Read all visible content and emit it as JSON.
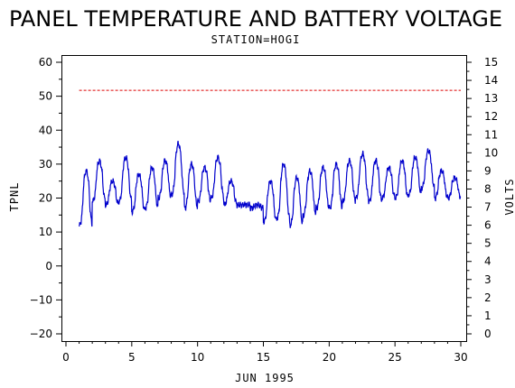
{
  "chart_data": {
    "type": "line",
    "title": "PANEL TEMPERATURE AND BATTERY VOLTAGE",
    "subtitle": "STATION=HOGI",
    "xlabel": "JUN 1995",
    "ylabel_left": "TPNL",
    "ylabel_right": "VOLTS",
    "xlim": [
      0,
      30
    ],
    "ylim_left": [
      -20,
      60
    ],
    "ylim_right": [
      0,
      15
    ],
    "x_ticks": [
      0,
      5,
      10,
      15,
      20,
      25,
      30
    ],
    "y_left_ticks": [
      -20,
      -10,
      0,
      10,
      20,
      30,
      40,
      50,
      60
    ],
    "y_right_ticks": [
      0,
      1,
      2,
      3,
      4,
      5,
      6,
      7,
      8,
      9,
      10,
      11,
      12,
      13,
      14,
      15
    ],
    "grid": false,
    "series": [
      {
        "axis": "left",
        "color": "#0000cc",
        "style": "solid",
        "daily_min": [
          12,
          19,
          18,
          19,
          16,
          17,
          20,
          21,
          17,
          19,
          20,
          18,
          18,
          17,
          13,
          14,
          12,
          15,
          17,
          17,
          19,
          20,
          19,
          20,
          20,
          21,
          23,
          20,
          20
        ],
        "daily_max": [
          28,
          31,
          25,
          32,
          27,
          29,
          31,
          36,
          30,
          29,
          32,
          25,
          18,
          18,
          25,
          30,
          26,
          28,
          29,
          30,
          31,
          33,
          31,
          29,
          31,
          32,
          34,
          28,
          26
        ]
      },
      {
        "axis": "right",
        "color": "#dd0000",
        "style": "dashed",
        "low": 12.9,
        "high": 14.0
      }
    ]
  }
}
